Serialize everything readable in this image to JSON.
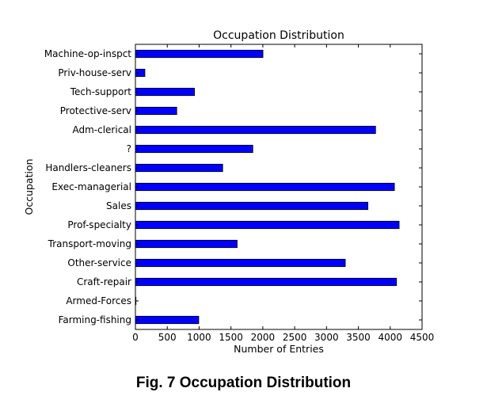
{
  "caption": "Fig. 7 Occupation Distribution",
  "chart_data": {
    "type": "bar",
    "orientation": "horizontal",
    "title": "Occupation Distribution",
    "xlabel": "Number of Entries",
    "ylabel": "Occupation",
    "xlim": [
      0,
      4500
    ],
    "xticks": [
      0,
      500,
      1000,
      1500,
      2000,
      2500,
      3000,
      3500,
      4000,
      4500
    ],
    "grid": false,
    "bar_color": "#0000ff",
    "categories": [
      "Machine-op-inspct",
      "Priv-house-serv",
      "Tech-support",
      "Protective-serv",
      "Adm-clerical",
      "?",
      "Handlers-cleaners",
      "Exec-managerial",
      "Sales",
      "Prof-specialty",
      "Transport-moving",
      "Other-service",
      "Craft-repair",
      "Armed-Forces",
      "Farming-fishing"
    ],
    "values": [
      2002,
      149,
      928,
      649,
      3770,
      1843,
      1370,
      4066,
      3650,
      4140,
      1597,
      3295,
      4099,
      9,
      994
    ]
  }
}
